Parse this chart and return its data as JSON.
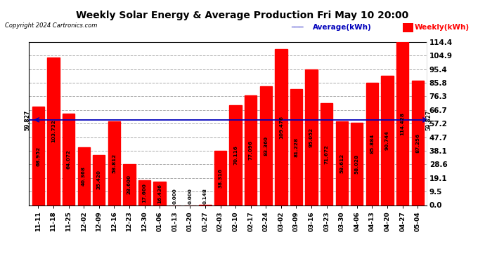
{
  "title": "Weekly Solar Energy & Average Production Fri May 10 20:00",
  "copyright": "Copyright 2024 Cartronics.com",
  "categories": [
    "11-11",
    "11-18",
    "11-25",
    "12-02",
    "12-09",
    "12-16",
    "12-23",
    "12-30",
    "01-06",
    "01-13",
    "01-20",
    "01-27",
    "02-03",
    "02-10",
    "02-17",
    "02-24",
    "03-02",
    "03-09",
    "03-16",
    "03-23",
    "03-30",
    "04-06",
    "04-13",
    "04-20",
    "04-27",
    "05-04"
  ],
  "values": [
    68.952,
    103.732,
    64.072,
    40.368,
    35.42,
    58.812,
    28.6,
    17.6,
    16.436,
    0.0,
    0.0,
    0.148,
    38.316,
    70.116,
    77.096,
    83.36,
    109.476,
    81.228,
    95.052,
    71.672,
    58.612,
    58.028,
    85.884,
    90.744,
    114.428,
    87.256
  ],
  "average": 59.827,
  "bar_color": "#FF0000",
  "avg_line_color": "#0000BB",
  "yticks": [
    0.0,
    9.5,
    19.1,
    28.6,
    38.1,
    47.7,
    57.2,
    66.7,
    76.3,
    85.8,
    95.4,
    104.9,
    114.4
  ],
  "ymax": 114.4,
  "ymin": 0.0,
  "background_color": "#FFFFFF",
  "grid_color": "#AAAAAA",
  "title_color": "#000000",
  "avg_label_color": "#0000BB",
  "weekly_label_color": "#FF0000",
  "legend_avg": "Average(kWh)",
  "legend_weekly": "Weekly(kWh)"
}
